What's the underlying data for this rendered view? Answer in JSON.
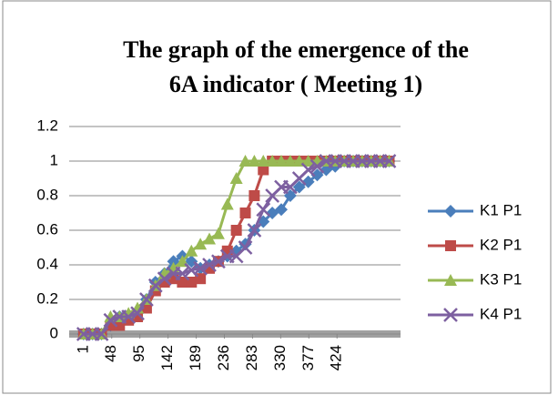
{
  "chart_data": {
    "type": "line",
    "title": [
      "The graph of the emergence of the",
      "6A indicator ( Meeting 1)"
    ],
    "x": [
      1,
      16,
      31,
      46,
      61,
      76,
      91,
      106,
      121,
      136,
      151,
      166,
      181,
      196,
      211,
      226,
      241,
      256,
      271,
      286,
      301,
      316,
      331,
      346,
      361,
      376,
      391,
      406,
      421,
      436,
      451,
      466,
      481,
      496,
      511
    ],
    "xlim": [
      -23,
      530
    ],
    "xticks": [
      1,
      48,
      95,
      142,
      189,
      236,
      283,
      330,
      377,
      424
    ],
    "ylim": [
      0,
      1.2
    ],
    "yticks": [
      0,
      0.2,
      0.4,
      0.6,
      0.8,
      1,
      1.2
    ],
    "grid": true,
    "legend": "right",
    "series": [
      {
        "name": "K1 P1",
        "color": "#4a7ebb",
        "marker": "diamond",
        "values": [
          0,
          0,
          0,
          0.05,
          0.1,
          0.1,
          0.12,
          0.2,
          0.3,
          0.35,
          0.42,
          0.45,
          0.42,
          0.38,
          0.4,
          0.42,
          0.45,
          0.48,
          0.52,
          0.6,
          0.65,
          0.7,
          0.72,
          0.8,
          0.85,
          0.88,
          0.92,
          0.95,
          0.97,
          1,
          1,
          1,
          1,
          1,
          1
        ]
      },
      {
        "name": "K2 P1",
        "color": "#be4b48",
        "marker": "square",
        "values": [
          0,
          0,
          0,
          0.05,
          0.05,
          0.08,
          0.1,
          0.15,
          0.25,
          0.3,
          0.32,
          0.3,
          0.3,
          0.32,
          0.38,
          0.42,
          0.48,
          0.6,
          0.7,
          0.8,
          0.95,
          1,
          1,
          1,
          1,
          1,
          1,
          1,
          1,
          1,
          1,
          1,
          1,
          1,
          1
        ]
      },
      {
        "name": "K3 P1",
        "color": "#98b954",
        "marker": "triangle",
        "values": [
          0,
          0,
          0,
          0.1,
          0.1,
          0.12,
          0.15,
          0.2,
          0.28,
          0.35,
          0.38,
          0.42,
          0.48,
          0.52,
          0.55,
          0.58,
          0.75,
          0.9,
          1,
          1,
          1,
          1,
          1,
          1,
          1,
          1,
          1,
          1,
          1,
          1,
          1,
          1,
          1,
          1,
          1
        ]
      },
      {
        "name": "K4 P1",
        "color": "#7d60a0",
        "marker": "x",
        "values": [
          0,
          0,
          0,
          0.08,
          0.1,
          0.1,
          0.12,
          0.2,
          0.28,
          0.32,
          0.35,
          0.35,
          0.37,
          0.38,
          0.4,
          0.42,
          0.45,
          0.45,
          0.5,
          0.6,
          0.72,
          0.8,
          0.85,
          0.85,
          0.9,
          0.95,
          0.97,
          1,
          1,
          1,
          1,
          1,
          1,
          1,
          1
        ]
      }
    ]
  }
}
